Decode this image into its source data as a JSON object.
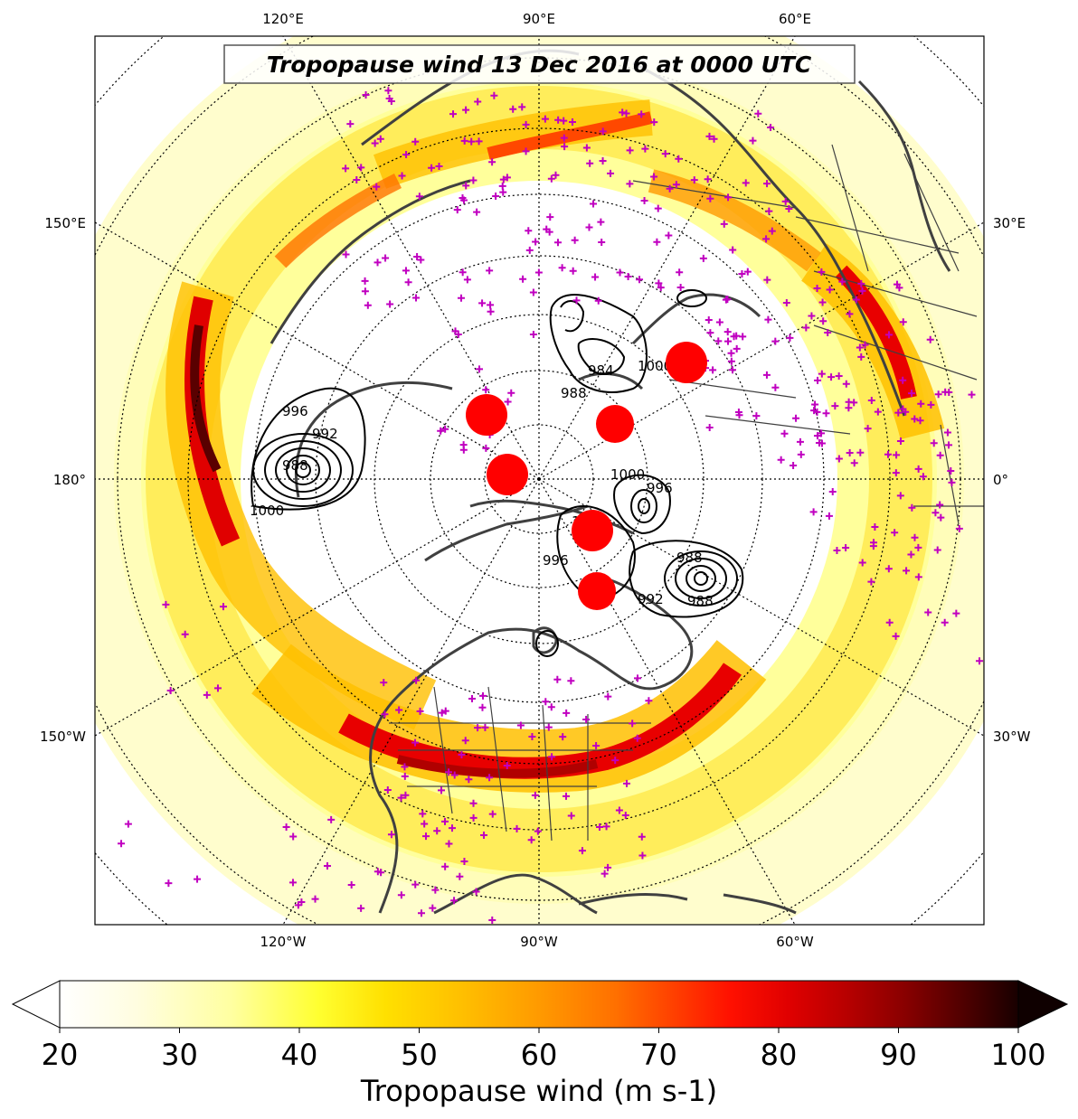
{
  "title": "Tropopause wind 13 Dec 2016 at 0000 UTC",
  "lon_labels_top": [
    "120°E",
    "90°E",
    "60°E"
  ],
  "lon_labels_bottom": [
    "120°W",
    "90°W",
    "60°W"
  ],
  "lon_labels_left": [
    "150°E",
    "180°",
    "150°W"
  ],
  "lon_labels_right": [
    "30°E",
    "0°",
    "30°W"
  ],
  "contour_labels": [
    "996",
    "992",
    "1000",
    "988",
    "984",
    "1000",
    "988",
    "1000",
    "996",
    "1000",
    "996",
    "988",
    "992",
    "988"
  ],
  "colorbar": {
    "ticks": [
      "20",
      "30",
      "40",
      "50",
      "60",
      "70",
      "80",
      "90",
      "100"
    ],
    "label": "Tropopause wind (m s-1)",
    "min": 20,
    "max": 100,
    "extend": "both",
    "colormap": "hot_r",
    "colors": [
      "#ffffff",
      "#fffde0",
      "#ffffa0",
      "#ffff40",
      "#ffe000",
      "#ffbf00",
      "#ff9a00",
      "#ff7200",
      "#ff4800",
      "#ff1a00",
      "#e80000",
      "#c20000",
      "#9c0000",
      "#740000",
      "#4a0000",
      "#200000"
    ]
  },
  "legend_colors": {
    "cyclone_marker": "#ff0000",
    "station_marker": "#c000c0",
    "coastline": "#404040",
    "contour": "#000000"
  }
}
